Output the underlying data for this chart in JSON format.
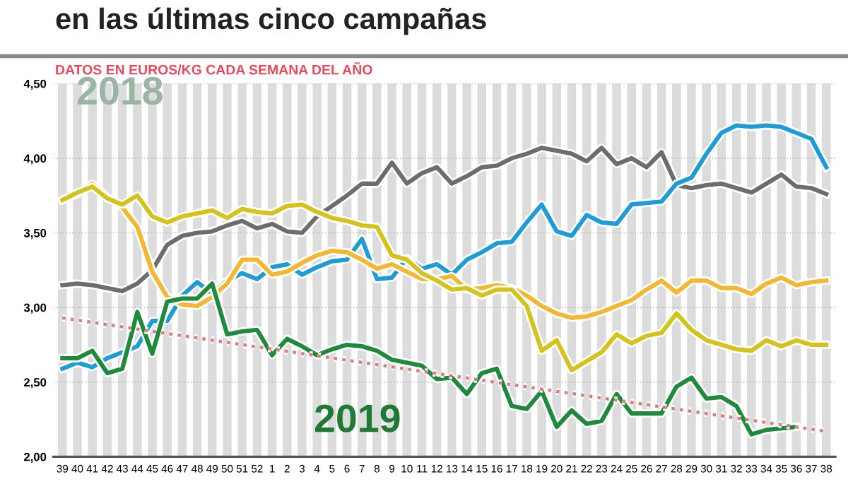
{
  "chart_data": {
    "type": "line",
    "title": "en las últimas cinco campañas",
    "subtitle": "DATOS EN EUROS/KG CADA SEMANA DEL AÑO",
    "annotations": [
      "2018",
      "2019"
    ],
    "categories": [
      "39",
      "40",
      "41",
      "42",
      "43",
      "44",
      "45",
      "46",
      "47",
      "48",
      "49",
      "50",
      "51",
      "52",
      "1",
      "2",
      "3",
      "4",
      "5",
      "6",
      "7",
      "8",
      "9",
      "10",
      "11",
      "12",
      "13",
      "14",
      "15",
      "16",
      "17",
      "18",
      "19",
      "20",
      "21",
      "22",
      "23",
      "24",
      "25",
      "26",
      "27",
      "28",
      "29",
      "30",
      "31",
      "32",
      "33",
      "34",
      "35",
      "36",
      "37",
      "38"
    ],
    "series": [
      {
        "color": "#6d6d6d",
        "values": [
          3.15,
          3.16,
          3.15,
          3.13,
          3.11,
          3.16,
          3.25,
          3.42,
          3.48,
          3.5,
          3.51,
          3.55,
          3.58,
          3.53,
          3.56,
          3.51,
          3.5,
          3.61,
          3.68,
          3.75,
          3.83,
          3.83,
          3.97,
          3.83,
          3.9,
          3.94,
          3.83,
          3.88,
          3.94,
          3.95,
          4.0,
          4.03,
          4.07,
          4.05,
          4.03,
          3.98,
          4.07,
          3.96,
          4.0,
          3.94,
          4.04,
          3.82,
          3.8,
          3.82,
          3.83,
          3.8,
          3.77,
          3.83,
          3.89,
          3.81,
          3.8,
          3.76
        ]
      },
      {
        "color": "#1e9cd7",
        "values": [
          2.59,
          2.63,
          2.6,
          2.66,
          2.7,
          2.74,
          2.91,
          2.91,
          3.08,
          3.17,
          3.09,
          3.18,
          3.23,
          3.19,
          3.27,
          3.29,
          3.22,
          3.27,
          3.31,
          3.32,
          3.46,
          3.19,
          3.2,
          3.33,
          3.26,
          3.29,
          3.22,
          3.32,
          3.37,
          3.43,
          3.44,
          3.57,
          3.69,
          3.51,
          3.48,
          3.62,
          3.57,
          3.56,
          3.69,
          3.7,
          3.71,
          3.83,
          3.87,
          4.03,
          4.17,
          4.22,
          4.21,
          4.22,
          4.21,
          4.17,
          4.13,
          3.94
        ]
      },
      {
        "color": "#f4b731",
        "values": [
          3.72,
          3.76,
          3.83,
          3.74,
          3.67,
          3.54,
          3.24,
          3.07,
          3.02,
          3.01,
          3.07,
          3.16,
          3.32,
          3.32,
          3.22,
          3.24,
          3.3,
          3.35,
          3.38,
          3.37,
          3.32,
          3.26,
          3.29,
          3.24,
          3.19,
          3.19,
          3.21,
          3.12,
          3.13,
          3.15,
          3.13,
          3.08,
          3.01,
          2.96,
          2.93,
          2.94,
          2.97,
          3.01,
          3.05,
          3.12,
          3.18,
          3.1,
          3.18,
          3.18,
          3.13,
          3.13,
          3.09,
          3.16,
          3.2,
          3.15,
          3.17,
          3.18
        ]
      },
      {
        "color": "#d4c31a",
        "values": [
          3.72,
          3.77,
          3.81,
          3.73,
          3.69,
          3.75,
          3.61,
          3.57,
          3.61,
          3.63,
          3.65,
          3.6,
          3.66,
          3.64,
          3.63,
          3.68,
          3.69,
          3.64,
          3.6,
          3.58,
          3.55,
          3.54,
          3.35,
          3.32,
          3.23,
          3.18,
          3.12,
          3.13,
          3.08,
          3.12,
          3.12,
          3.01,
          2.71,
          2.78,
          2.58,
          2.64,
          2.7,
          2.82,
          2.76,
          2.81,
          2.83,
          2.96,
          2.85,
          2.78,
          2.75,
          2.72,
          2.71,
          2.78,
          2.74,
          2.78,
          2.75,
          2.75
        ]
      },
      {
        "color": "#1f8a3c",
        "values": [
          2.66,
          2.66,
          2.71,
          2.56,
          2.59,
          2.97,
          2.69,
          3.04,
          3.06,
          3.06,
          3.16,
          2.82,
          2.84,
          2.85,
          2.68,
          2.79,
          2.74,
          2.68,
          2.72,
          2.75,
          2.74,
          2.71,
          2.65,
          2.63,
          2.61,
          2.52,
          2.53,
          2.42,
          2.56,
          2.59,
          2.34,
          2.32,
          2.44,
          2.2,
          2.31,
          2.22,
          2.24,
          2.42,
          2.29,
          2.29,
          2.29,
          2.47,
          2.53,
          2.39,
          2.4,
          2.34,
          2.15,
          2.18,
          2.19,
          2.2,
          null,
          null
        ]
      },
      {
        "color": "#e07a7a",
        "line_style": "dotted",
        "x": [
          "39",
          "38"
        ],
        "values": [
          2.93,
          2.17
        ]
      }
    ],
    "ylim": [
      2.0,
      4.5
    ],
    "yticks": [
      {
        "value": 2.0,
        "label": "2,00"
      },
      {
        "value": 2.5,
        "label": "2,50"
      },
      {
        "value": 3.0,
        "label": "3,00"
      },
      {
        "value": 3.5,
        "label": "3,50"
      },
      {
        "value": 4.0,
        "label": "4,00"
      },
      {
        "value": 4.5,
        "label": "4,50"
      }
    ],
    "grid": true
  }
}
